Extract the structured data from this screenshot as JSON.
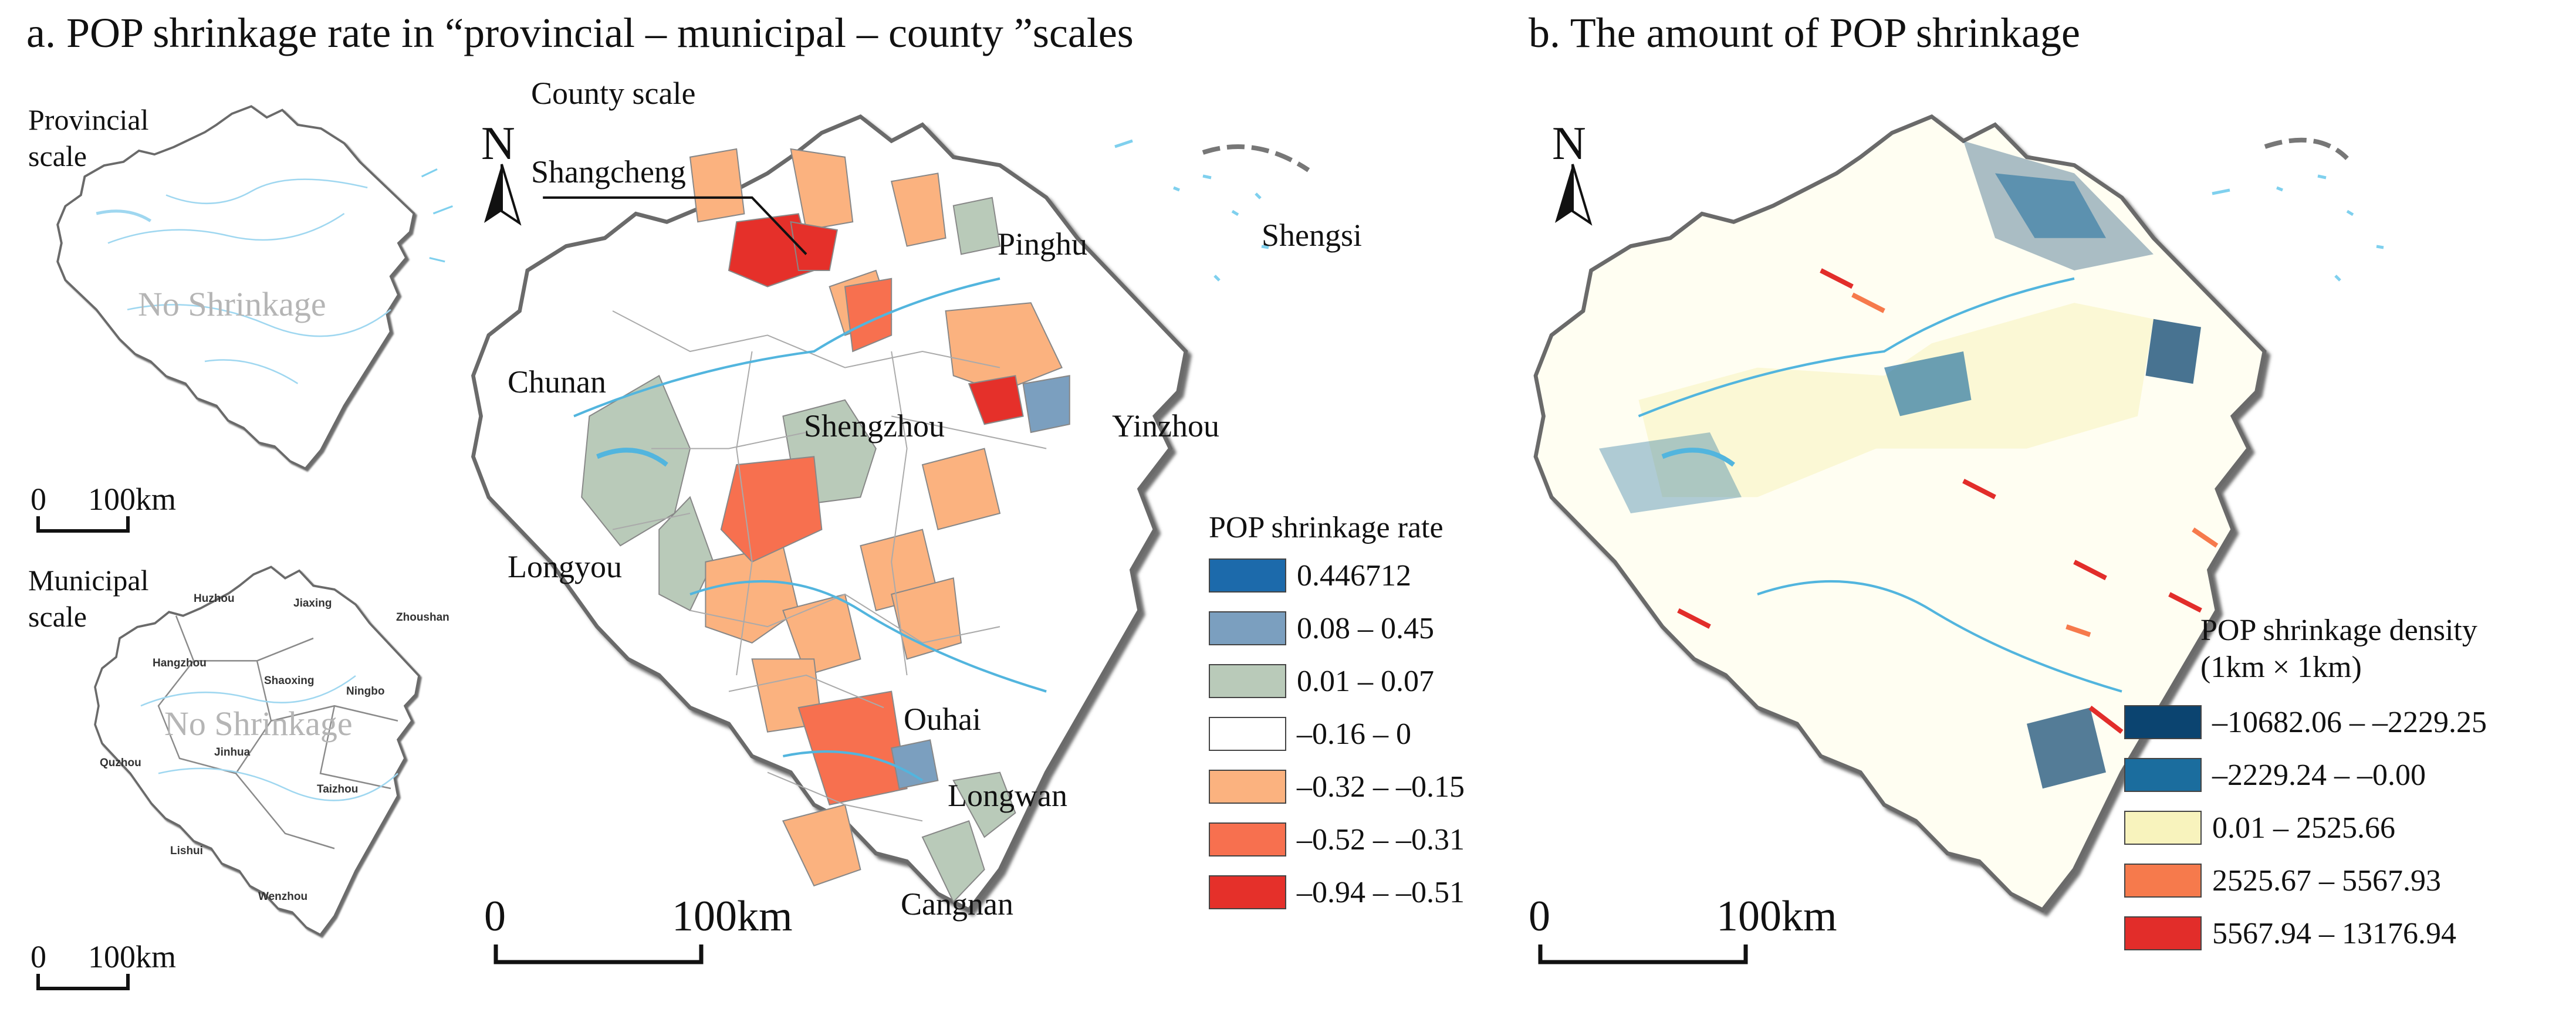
{
  "panel_a": {
    "title": "a. POP shrinkage rate in “provincial – municipal – county ”scales",
    "provincial": {
      "label_line1": "Provincial",
      "label_line2": "scale",
      "no_shrink": "No Shrinkage",
      "scale_zero": "0",
      "scale_end": "100km"
    },
    "municipal": {
      "label_line1": "Municipal",
      "label_line2": "scale",
      "no_shrink": "No Shrinkage",
      "scale_zero": "0",
      "scale_end": "100km",
      "cities": [
        "Huzhou",
        "Jiaxing",
        "Zhoushan",
        "Hangzhou",
        "Shaoxing",
        "Ningbo",
        "Quzhou",
        "Jinhua",
        "Taizhou",
        "Lishui",
        "Wenzhou"
      ]
    },
    "county": {
      "label": "County scale",
      "north": "N",
      "places": [
        "Shangcheng",
        "Pinghu",
        "Shengsi",
        "Chunan",
        "Shengzhou",
        "Yinzhou",
        "Longyou",
        "Ouhai",
        "Longwan",
        "Cangnan"
      ],
      "scale_zero": "0",
      "scale_end": "100km"
    },
    "legend": {
      "title": "POP shrinkage rate",
      "items": [
        {
          "label": "0.446712",
          "color": "#1c6aab"
        },
        {
          "label": "0.08 – 0.45",
          "color": "#7b9fbf"
        },
        {
          "label": "0.01 – 0.07",
          "color": "#b9cab9"
        },
        {
          "label": "–0.16 – 0",
          "color": "#ffffff"
        },
        {
          "label": "–0.32 – –0.15",
          "color": "#fbb27f"
        },
        {
          "label": "–0.52 – –0.31",
          "color": "#f7704f"
        },
        {
          "label": "–0.94 – –0.51",
          "color": "#e5302a"
        }
      ]
    }
  },
  "panel_b": {
    "title": "b. The amount of POP shrinkage",
    "north": "N",
    "scale_zero": "0",
    "scale_end": "100km",
    "legend": {
      "title_line1": "POP shrinkage density",
      "title_line2": "(1km × 1km)",
      "items": [
        {
          "label": "–10682.06 – –2229.25",
          "color": "#0b4470"
        },
        {
          "label": "–2229.24 – –0.00",
          "color": "#1b6d9e"
        },
        {
          "label": "0.01 – 2525.66",
          "color": "#f8f3bd"
        },
        {
          "label": "2525.67 – 5567.93",
          "color": "#f67a4c"
        },
        {
          "label": "5567.94 – 13176.94",
          "color": "#e22d2a"
        }
      ]
    }
  }
}
